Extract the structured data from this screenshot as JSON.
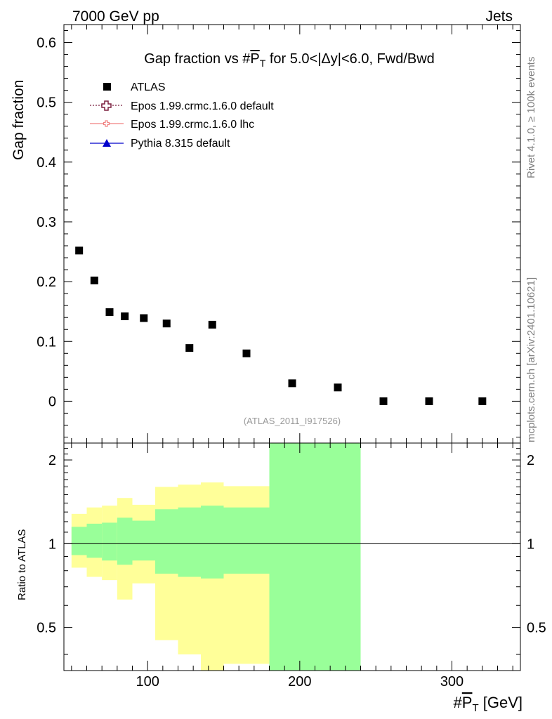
{
  "header": {
    "energy_label": "7000 GeV pp",
    "process_label": "Jets"
  },
  "side_labels": {
    "rivet": "Rivet 4.1.0, ≥ 100k events",
    "mcplots": "mcplots.cern.ch [arXiv:2401.10621]"
  },
  "main_plot": {
    "title_prefix": "Gap fraction vs #",
    "title_symbol": "P",
    "title_subscript": "T",
    "title_suffix": " for 5.0<|Δy|<6.0, Fwd/Bwd",
    "ylabel": "Gap fraction",
    "watermark": "(ATLAS_2011_I917526)",
    "legend": [
      {
        "label": "ATLAS",
        "marker": "filled-square",
        "color": "#000000"
      },
      {
        "label": "Epos 1.99.crmc.1.6.0 default",
        "marker": "open-cross",
        "color": "#7a1f3d"
      },
      {
        "label": "Epos 1.99.crmc.1.6.0 lhc",
        "marker": "small-cross",
        "color": "#f08080"
      },
      {
        "label": "Pythia 8.315 default",
        "marker": "triangle",
        "color": "#0000cc"
      }
    ]
  },
  "ratio_plot": {
    "ylabel": "Ratio to ATLAS"
  },
  "xaxis": {
    "label_prefix": "#",
    "label_symbol": "P",
    "label_subscript": "T",
    "label_suffix": " [GeV]"
  },
  "chart_data": {
    "type": "scatter",
    "title": "Gap fraction vs #PT for 5.0<|Δy|<6.0, Fwd/Bwd",
    "xlabel": "#PT [GeV]",
    "ylabel": "Gap fraction",
    "xlim": [
      45,
      345
    ],
    "ylim": [
      -0.07,
      0.63
    ],
    "yticks": [
      0,
      0.1,
      0.2,
      0.3,
      0.4,
      0.5,
      0.6
    ],
    "ytick_labels": [
      "0",
      "0.1",
      "0.2",
      "0.3",
      "0.4",
      "0.5",
      "0.6"
    ],
    "xticks": [
      100,
      200,
      300
    ],
    "xtick_labels": [
      "100",
      "200",
      "300"
    ],
    "series": [
      {
        "name": "ATLAS",
        "x": [
          55,
          65,
          75,
          85,
          97.5,
          112.5,
          127.5,
          142.5,
          165,
          195,
          225,
          255,
          285,
          320
        ],
        "y": [
          0.252,
          0.202,
          0.149,
          0.142,
          0.139,
          0.13,
          0.089,
          0.128,
          0.08,
          0.03,
          0.023,
          0.0,
          0.0,
          0.0
        ]
      }
    ],
    "ratio": {
      "ylabel": "Ratio to ATLAS",
      "ylim": [
        0.35,
        2.3
      ],
      "yticks": [
        0.5,
        1,
        2
      ],
      "ytick_labels": [
        "0.5",
        "1",
        "2"
      ],
      "reference": 1,
      "bands": [
        {
          "xlo": 50,
          "xhi": 60,
          "stat_lo": 0.91,
          "stat_hi": 1.15,
          "tot_lo": 0.82,
          "tot_hi": 1.28
        },
        {
          "xlo": 60,
          "xhi": 70,
          "stat_lo": 0.89,
          "stat_hi": 1.18,
          "tot_lo": 0.76,
          "tot_hi": 1.35
        },
        {
          "xlo": 70,
          "xhi": 80,
          "stat_lo": 0.87,
          "stat_hi": 1.19,
          "tot_lo": 0.74,
          "tot_hi": 1.37
        },
        {
          "xlo": 80,
          "xhi": 90,
          "stat_lo": 0.84,
          "stat_hi": 1.24,
          "tot_lo": 0.63,
          "tot_hi": 1.46
        },
        {
          "xlo": 90,
          "xhi": 105,
          "stat_lo": 0.87,
          "stat_hi": 1.21,
          "tot_lo": 0.72,
          "tot_hi": 1.38
        },
        {
          "xlo": 105,
          "xhi": 120,
          "stat_lo": 0.78,
          "stat_hi": 1.33,
          "tot_lo": 0.45,
          "tot_hi": 1.6
        },
        {
          "xlo": 120,
          "xhi": 135,
          "stat_lo": 0.76,
          "stat_hi": 1.35,
          "tot_lo": 0.4,
          "tot_hi": 1.63
        },
        {
          "xlo": 135,
          "xhi": 150,
          "stat_lo": 0.75,
          "stat_hi": 1.37,
          "tot_lo": 0.35,
          "tot_hi": 1.66
        },
        {
          "xlo": 150,
          "xhi": 180,
          "stat_lo": 0.78,
          "stat_hi": 1.35,
          "tot_lo": 0.37,
          "tot_hi": 1.61
        },
        {
          "xlo": 180,
          "xhi": 210,
          "stat_lo": 0.35,
          "stat_hi": 2.3,
          "tot_lo": 0.35,
          "tot_hi": 2.3
        },
        {
          "xlo": 210,
          "xhi": 240,
          "stat_lo": 0.35,
          "stat_hi": 2.3,
          "tot_lo": 0.35,
          "tot_hi": 2.3
        }
      ]
    },
    "colors": {
      "stat_band": "#99ff99",
      "total_band": "#ffff99",
      "data_marker": "#000000",
      "frame": "#000000",
      "watermark": "#999999"
    }
  }
}
